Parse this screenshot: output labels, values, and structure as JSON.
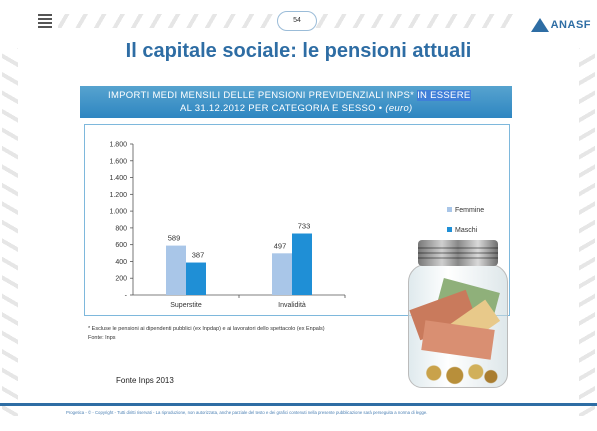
{
  "slide": {
    "page_number": "54",
    "logo_text": "ANASF",
    "title": "Il capitale sociale: le pensioni attuali",
    "chart_header_line1_part1": "IMPORTI MEDI MENSILI DELLE PENSIONI PREVIDENZIALI INPS*",
    "chart_header_line1_part2": "IN ESSERE",
    "chart_header_line2_main": "AL 31.12.2012 PER CATEGORIA E SESSO •",
    "chart_header_line2_unit": "(euro)",
    "footnote": "* Escluse le pensioni ai dipendenti pubblici (ex Inpdap) e ai lavoratori dello spettacolo (ex Enpals)",
    "footnote_source": "Fonte: Inps",
    "source_note": "Fonte Inps 2013",
    "copyright": "Progetica - © - Copyright - Tutti diritti riservati - La riproduzione, non autorizzata, anche parziale del testo e dei grafici contenuti nella presente pubblicazione sarà perseguita a norma di legge."
  },
  "chart_data": {
    "type": "bar",
    "categories": [
      "Superstite",
      "Invalidità"
    ],
    "series": [
      {
        "name": "Femmine",
        "values": [
          589,
          497
        ],
        "color": "#a9c6e8"
      },
      {
        "name": "Maschi",
        "values": [
          387,
          733
        ],
        "color": "#1f8fd6"
      }
    ],
    "ylim": [
      0,
      1800
    ],
    "yticks": [
      0,
      200,
      400,
      600,
      800,
      1000,
      1200,
      1400,
      1600,
      1800
    ],
    "ytick_labels": [
      "-",
      "200",
      "400",
      "600",
      "800",
      "1.000",
      "1.200",
      "1.400",
      "1.600",
      "1.800"
    ],
    "data_labels": [
      "589",
      "387",
      "497",
      "733"
    ],
    "legend_position": "right",
    "grid": false
  }
}
